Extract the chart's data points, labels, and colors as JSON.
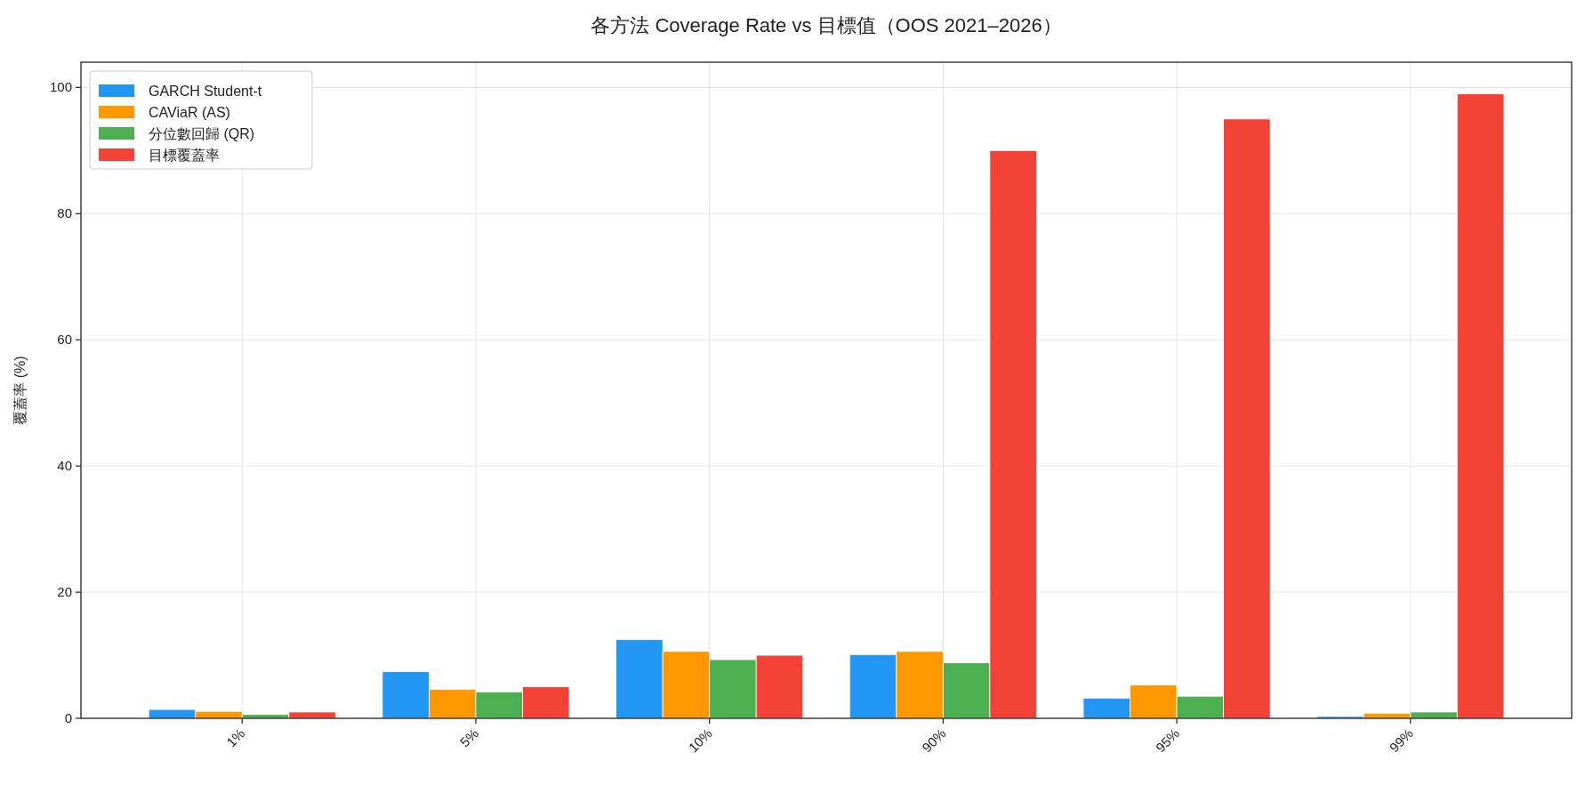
{
  "chart_data": {
    "type": "bar",
    "title": "各方法 Coverage Rate vs 目標值（OOS 2021–2026）",
    "ylabel": "覆蓋率 (%)",
    "categories": [
      "1%",
      "5%",
      "10%",
      "90%",
      "95%",
      "99%"
    ],
    "series": [
      {
        "name": "GARCH Student-t",
        "color": "#2196f3",
        "values": [
          1.4,
          7.4,
          12.5,
          10.1,
          3.2,
          0.3
        ]
      },
      {
        "name": "CAViaR (AS)",
        "color": "#ff9800",
        "values": [
          1.1,
          4.6,
          10.6,
          10.6,
          5.3,
          0.8
        ]
      },
      {
        "name": "分位數回歸 (QR)",
        "color": "#4caf50",
        "values": [
          0.6,
          4.2,
          9.3,
          8.8,
          3.5,
          1.0
        ]
      },
      {
        "name": "目標覆蓋率",
        "color": "#f44336",
        "values": [
          1,
          5,
          10,
          90,
          95,
          99
        ]
      }
    ],
    "ylim": [
      0,
      104
    ],
    "yticks": [
      0,
      20,
      40,
      60,
      80,
      100
    ],
    "grid": true,
    "legend": "top left"
  }
}
